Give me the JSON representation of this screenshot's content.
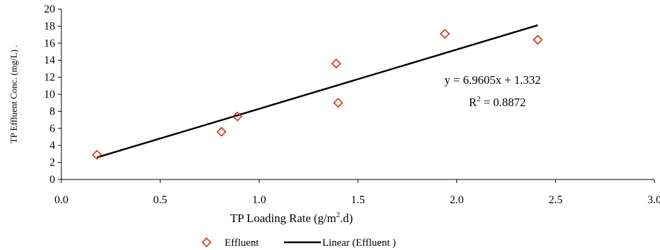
{
  "chart_data": {
    "type": "scatter",
    "xlabel": "TP Loading Rate (g/m",
    "xlabel_sup": "2",
    "xlabel_tail": ".d)",
    "ylabel": "TP Effluent Conc. (mg/L)  .",
    "xlim": [
      0,
      3
    ],
    "ylim": [
      0,
      20
    ],
    "x_ticks": [
      "0.0",
      "0.5",
      "1.0",
      "1.5",
      "2.0",
      "2.5",
      "3.0"
    ],
    "y_ticks": [
      "0",
      "2",
      "4",
      "6",
      "8",
      "10",
      "12",
      "14",
      "16",
      "18",
      "20"
    ],
    "x_tick_values": [
      0,
      0.5,
      1,
      1.5,
      2,
      2.5,
      3
    ],
    "y_tick_values": [
      0,
      2,
      4,
      6,
      8,
      10,
      12,
      14,
      16,
      18,
      20
    ],
    "series": [
      {
        "name": "Effluent",
        "color": "#cc2200",
        "marker": "diamond",
        "points": [
          {
            "x": 0.18,
            "y": 2.9
          },
          {
            "x": 0.81,
            "y": 5.6
          },
          {
            "x": 0.89,
            "y": 7.4
          },
          {
            "x": 1.39,
            "y": 13.6
          },
          {
            "x": 1.4,
            "y": 9.0
          },
          {
            "x": 1.94,
            "y": 17.1
          },
          {
            "x": 2.41,
            "y": 16.4
          }
        ]
      }
    ],
    "trendline": {
      "name": "Linear (Effluent )",
      "color": "#000000",
      "slope": 6.9605,
      "intercept": 1.332,
      "x_range": [
        0.18,
        2.41
      ]
    },
    "equation": "y = 6.9605x + 1.332",
    "r2_prefix": "R",
    "r2_sup": "2",
    "r2_value": " = 0.8872",
    "legend": [
      {
        "label": "Effluent",
        "kind": "marker"
      },
      {
        "label": "Linear (Effluent )",
        "kind": "line"
      }
    ],
    "legend_position": "bottom",
    "grid": false
  }
}
